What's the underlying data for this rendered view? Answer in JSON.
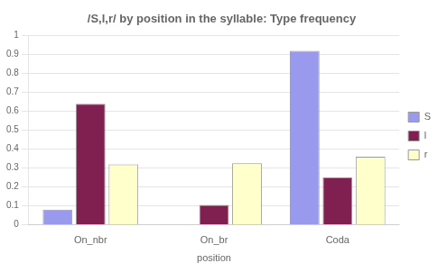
{
  "chart_data": {
    "type": "bar",
    "title": "/S,l,r/ by position in the syllable: Type frequency",
    "xlabel": "position",
    "categories": [
      "On_nbr",
      "On_br",
      "Coda"
    ],
    "series": [
      {
        "name": "S",
        "color": "#9999ee",
        "values": [
          0.08,
          0.0,
          0.92
        ]
      },
      {
        "name": "l",
        "color": "#802050",
        "values": [
          0.64,
          0.105,
          0.25
        ]
      },
      {
        "name": "r",
        "color": "#FFFFCC",
        "values": [
          0.32,
          0.325,
          0.36
        ]
      }
    ],
    "ylim": [
      0,
      1.0
    ],
    "yticks": [
      0,
      0.1,
      0.2,
      0.3,
      0.4,
      0.5,
      0.6,
      0.7,
      0.8,
      0.9,
      1
    ],
    "grid": true,
    "legend": "right"
  }
}
